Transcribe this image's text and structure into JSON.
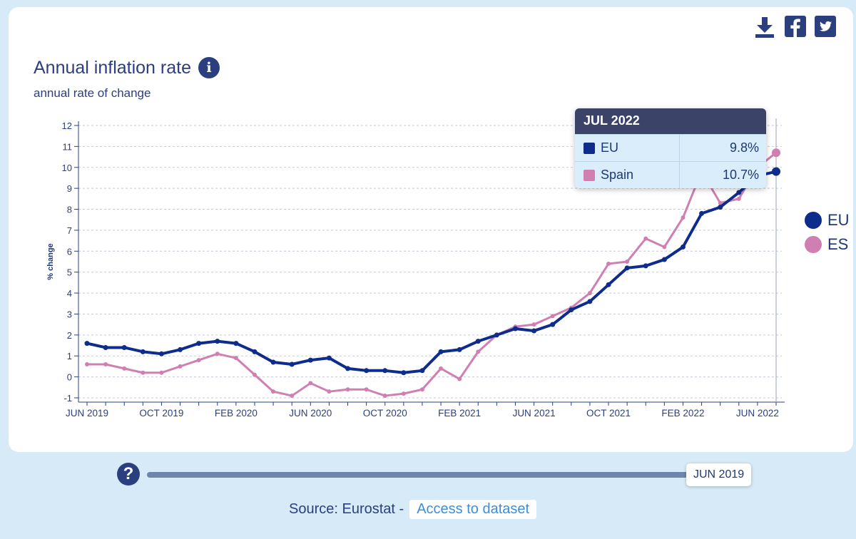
{
  "title": "Annual inflation rate",
  "subtitle": "annual rate of change",
  "share": {
    "download_icon": "download-icon",
    "facebook_icon": "facebook-icon",
    "twitter_icon": "twitter-icon"
  },
  "chart_data": {
    "type": "line",
    "ylabel": "% change",
    "ylim": [
      -1,
      12
    ],
    "yticks": [
      -1,
      0,
      1,
      2,
      3,
      4,
      5,
      6,
      7,
      8,
      9,
      10,
      11,
      12
    ],
    "grid": true,
    "x": [
      "JUN 2019",
      "JUL 2019",
      "AUG 2019",
      "SEP 2019",
      "OCT 2019",
      "NOV 2019",
      "DEC 2019",
      "JAN 2020",
      "FEB 2020",
      "MAR 2020",
      "APR 2020",
      "MAY 2020",
      "JUN 2020",
      "JUL 2020",
      "AUG 2020",
      "SEP 2020",
      "OCT 2020",
      "NOV 2020",
      "DEC 2020",
      "JAN 2021",
      "FEB 2021",
      "MAR 2021",
      "APR 2021",
      "MAY 2021",
      "JUN 2021",
      "JUL 2021",
      "AUG 2021",
      "SEP 2021",
      "OCT 2021",
      "NOV 2021",
      "DEC 2021",
      "JAN 2022",
      "FEB 2022",
      "MAR 2022",
      "APR 2022",
      "MAY 2022",
      "JUN 2022",
      "JUL 2022"
    ],
    "xtick_labels": [
      "JUN 2019",
      "OCT 2019",
      "FEB 2020",
      "JUN 2020",
      "OCT 2020",
      "FEB 2021",
      "JUN 2021",
      "OCT 2021",
      "FEB 2022",
      "JUN 2022"
    ],
    "series": [
      {
        "name": "EU",
        "color": "#0d2c8c",
        "values": [
          1.6,
          1.4,
          1.4,
          1.2,
          1.1,
          1.3,
          1.6,
          1.7,
          1.6,
          1.2,
          0.7,
          0.6,
          0.8,
          0.9,
          0.4,
          0.3,
          0.3,
          0.2,
          0.3,
          1.2,
          1.3,
          1.7,
          2.0,
          2.3,
          2.2,
          2.5,
          3.2,
          3.6,
          4.4,
          5.2,
          5.3,
          5.6,
          6.2,
          7.8,
          8.1,
          8.8,
          9.6,
          9.8
        ]
      },
      {
        "name": "Spain",
        "color": "#cf7fb2",
        "values": [
          0.6,
          0.6,
          0.4,
          0.2,
          0.2,
          0.5,
          0.8,
          1.1,
          0.9,
          0.1,
          -0.7,
          -0.9,
          -0.3,
          -0.7,
          -0.6,
          -0.6,
          -0.9,
          -0.8,
          -0.6,
          0.4,
          -0.1,
          1.2,
          2.0,
          2.4,
          2.5,
          2.9,
          3.3,
          4.0,
          5.4,
          5.5,
          6.6,
          6.2,
          7.6,
          9.8,
          8.3,
          8.5,
          10.0,
          10.7
        ]
      }
    ]
  },
  "tooltip": {
    "period": "JUL 2022",
    "rows": [
      {
        "name": "EU",
        "value": "9.8%",
        "color": "#0d2c8c"
      },
      {
        "name": "Spain",
        "value": "10.7%",
        "color": "#cf7fb2"
      }
    ]
  },
  "legend": [
    {
      "label": "EU",
      "color": "#0d2c8c"
    },
    {
      "label": "ES",
      "color": "#cf7fb2"
    }
  ],
  "slider": {
    "value": "JUN 2019",
    "help_icon": "help-icon"
  },
  "source": {
    "prefix": "Source: Eurostat -",
    "link_label": "Access to dataset"
  }
}
